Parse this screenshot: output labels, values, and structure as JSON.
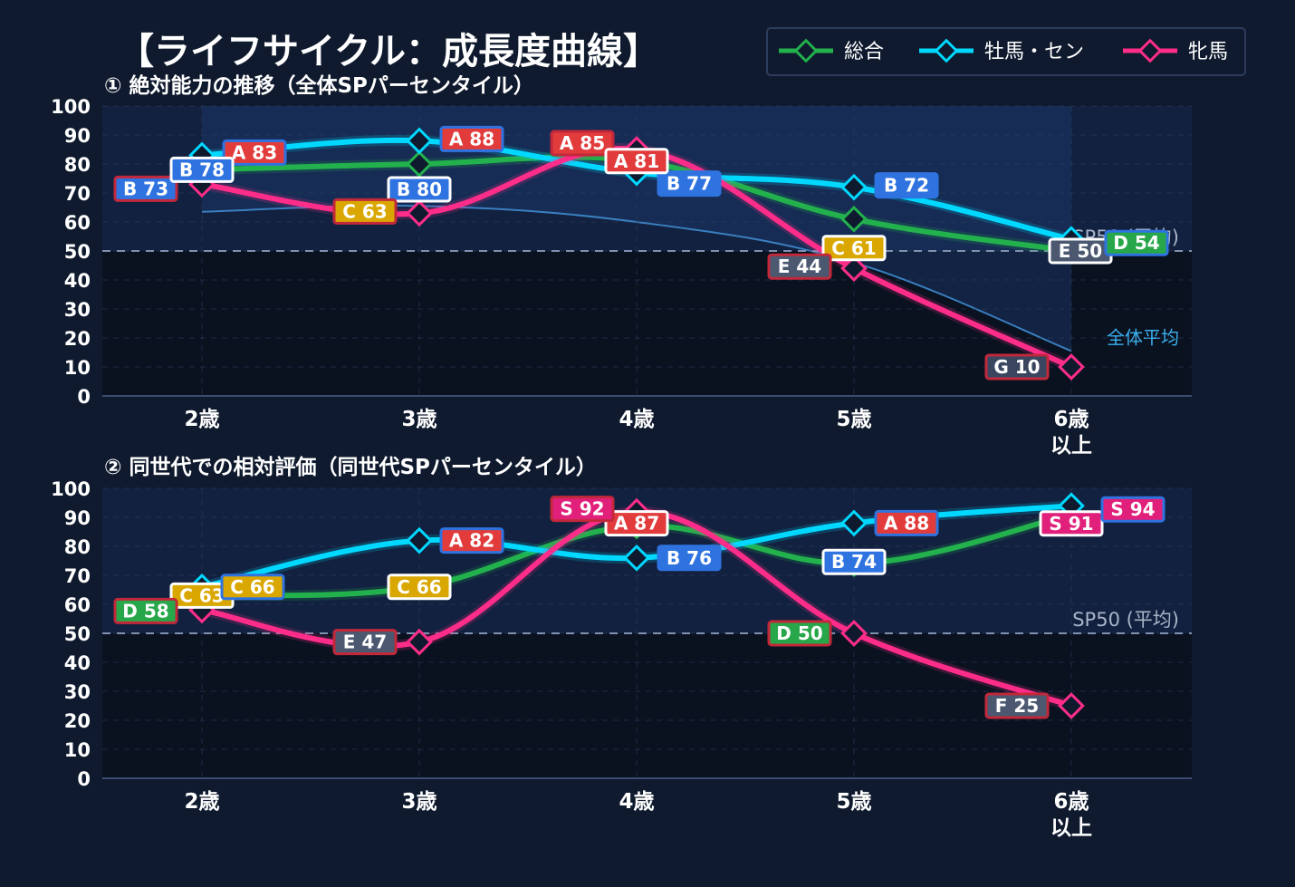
{
  "title": "【ライフサイクル：成長度曲線】",
  "colors": {
    "background": "#0f1a2e",
    "plot_bg": "#0a1220",
    "plot_band": "#15274a",
    "total": "#22b14c",
    "colt": "#00d8ff",
    "filly": "#ff2d8a",
    "avg_line": "#3a7fc0",
    "grid": "#2c3d5c",
    "text": "#ffffff",
    "muted_text": "#a9b4c8",
    "avg_label": "#3bb0f0"
  },
  "grade_colors": {
    "S": "#e0207a",
    "A": "#e23b3b",
    "B": "#2f73e0",
    "C": "#d9a700",
    "D": "#27a74a",
    "E": "#4b5870",
    "F": "#4b5870",
    "G": "#3a4660"
  },
  "legend": {
    "position": "top-right",
    "items": [
      {
        "key": "total",
        "label": "総合"
      },
      {
        "key": "colt",
        "label": "牡馬・セン"
      },
      {
        "key": "filly",
        "label": "牝馬"
      }
    ]
  },
  "chart_data": [
    {
      "type": "line",
      "title": "① 絶対能力の推移（全体SPパーセンタイル）",
      "categories": [
        "2歳",
        "3歳",
        "4歳",
        "5歳",
        "6歳\n以上"
      ],
      "ylim": [
        0,
        100
      ],
      "yticks": [
        0,
        10,
        20,
        30,
        40,
        50,
        60,
        70,
        80,
        90,
        100
      ],
      "reference_line": {
        "value": 50,
        "label": "SP50 (平均)"
      },
      "average_curve": {
        "label": "全体平均",
        "values": [
          63.5,
          65.5,
          60,
          46,
          15.5
        ]
      },
      "series": [
        {
          "key": "total",
          "name": "総合",
          "values": [
            78,
            80,
            81,
            61,
            50
          ],
          "labels": [
            "",
            "B 80",
            "",
            "C 61",
            "E 50"
          ]
        },
        {
          "key": "colt",
          "name": "牡馬・セン",
          "values": [
            83,
            88,
            77,
            72,
            54
          ],
          "labels": [
            "A 83",
            "A 88",
            "B 77",
            "B 72",
            "D 54"
          ]
        },
        {
          "key": "filly",
          "name": "牝馬",
          "values": [
            73,
            63,
            85,
            44,
            10
          ],
          "labels": [
            "B 73",
            "C 63",
            "A 85",
            "E 44",
            "G 10"
          ]
        }
      ],
      "extra_labels": [
        {
          "text": "B 78",
          "series": "total",
          "index": 0
        },
        {
          "text": "A 81",
          "series": "total",
          "index": 2
        }
      ]
    },
    {
      "type": "line",
      "title": "② 同世代での相対評価（同世代SPパーセンタイル）",
      "categories": [
        "2歳",
        "3歳",
        "4歳",
        "5歳",
        "6歳\n以上"
      ],
      "ylim": [
        0,
        100
      ],
      "yticks": [
        0,
        10,
        20,
        30,
        40,
        50,
        60,
        70,
        80,
        90,
        100
      ],
      "reference_line": {
        "value": 50,
        "label": "SP50 (平均)"
      },
      "series": [
        {
          "key": "total",
          "name": "総合",
          "values": [
            63,
            66,
            87,
            74,
            91
          ],
          "labels": [
            "C 63",
            "C 66",
            "A 87",
            "B 74",
            "S 91"
          ]
        },
        {
          "key": "colt",
          "name": "牡馬・セン",
          "values": [
            66,
            82,
            76,
            88,
            94
          ],
          "labels": [
            "C 66",
            "A 82",
            "B 76",
            "A 88",
            "S 94"
          ]
        },
        {
          "key": "filly",
          "name": "牝馬",
          "values": [
            58,
            47,
            92,
            50,
            25
          ],
          "labels": [
            "D 58",
            "E 47",
            "S 92",
            "D 50",
            "F 25"
          ]
        }
      ]
    }
  ]
}
